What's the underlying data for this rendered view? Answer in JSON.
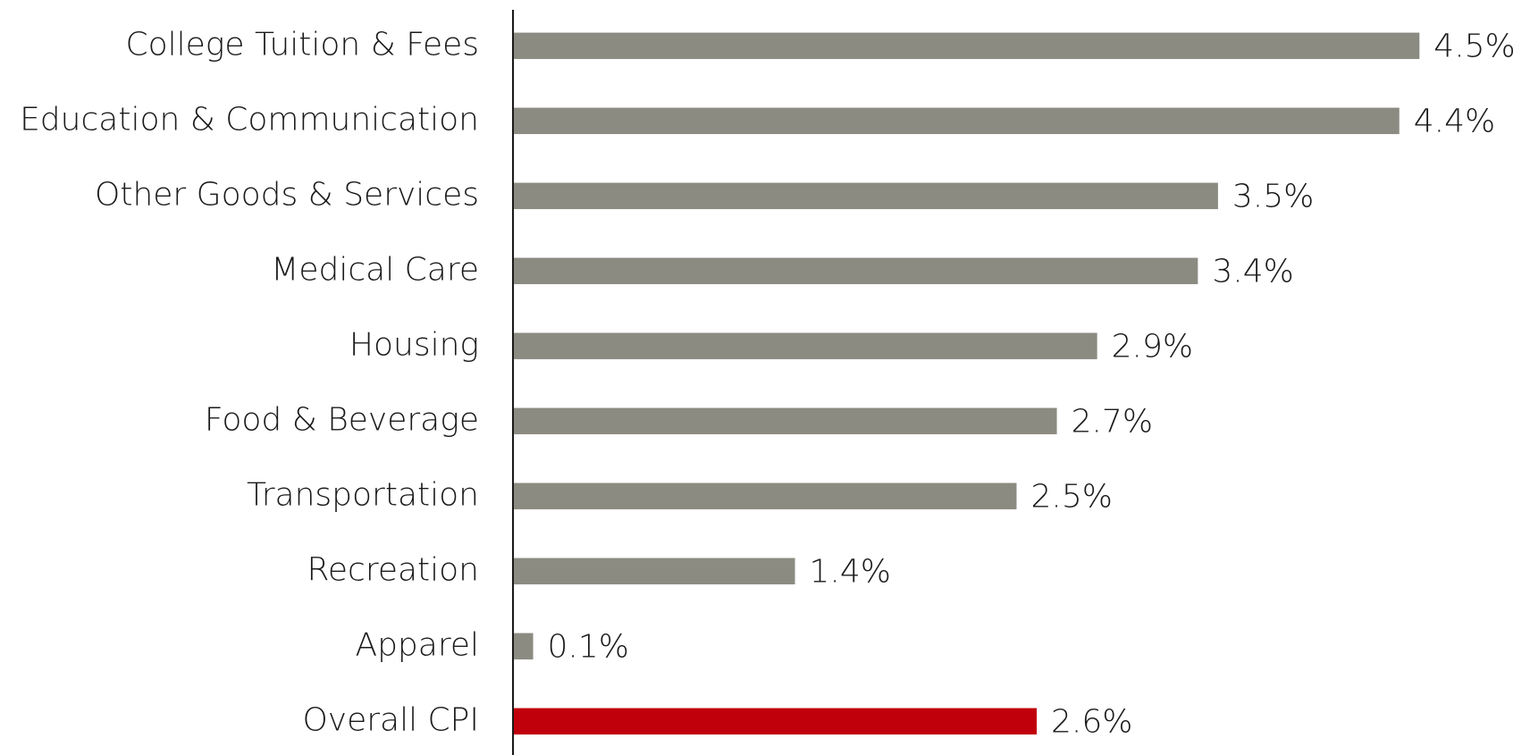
{
  "chart_data": {
    "type": "bar",
    "orientation": "horizontal",
    "categories": [
      "College Tuition & Fees",
      "Education & Communication",
      "Other Goods & Services",
      "Medical Care",
      "Housing",
      "Food & Beverage",
      "Transportation",
      "Recreation",
      "Apparel",
      "Overall CPI"
    ],
    "values": [
      4.5,
      4.4,
      3.5,
      3.4,
      2.9,
      2.7,
      2.5,
      1.4,
      0.1,
      2.6
    ],
    "value_labels": [
      "4.5%",
      "4.4%",
      "3.5%",
      "3.4%",
      "2.9%",
      "2.7%",
      "2.5%",
      "1.4%",
      "0.1%",
      "2.6%"
    ],
    "colors": [
      "#8c8b82",
      "#8c8b82",
      "#8c8b82",
      "#8c8b82",
      "#8c8b82",
      "#8c8b82",
      "#8c8b82",
      "#8c8b82",
      "#8c8b82",
      "#c0000b"
    ],
    "xlim": [
      0,
      5
    ]
  }
}
